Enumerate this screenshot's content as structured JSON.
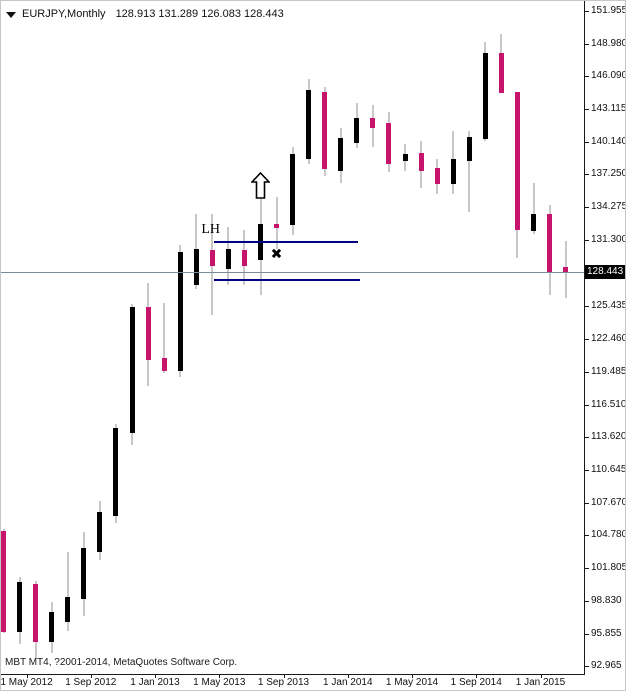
{
  "window": {
    "title_symbol": "EURJPY,Monthly",
    "title_quotes": "128.913 131.289 126.083 128.443",
    "copyright": "MBT MT4, ?2001-2014, MetaQuotes Software Corp."
  },
  "axes": {
    "price_ticks": [
      "151.955",
      "148.980",
      "146.090",
      "143.115",
      "140.140",
      "137.250",
      "134.275",
      "131.300",
      "125.435",
      "122.460",
      "119.485",
      "116.510",
      "113.620",
      "110.645",
      "107.670",
      "104.780",
      "101.805",
      "98.830",
      "95.855",
      "92.965"
    ],
    "time_ticks": [
      {
        "label": "1 May 2012",
        "candle_index": 1
      },
      {
        "label": "1 Sep 2012",
        "candle_index": 5
      },
      {
        "label": "1 Jan 2013",
        "candle_index": 9
      },
      {
        "label": "1 May 2013",
        "candle_index": 13
      },
      {
        "label": "1 Sep 2013",
        "candle_index": 17
      },
      {
        "label": "1 Jan 2014",
        "candle_index": 21
      },
      {
        "label": "1 May 2014",
        "candle_index": 25
      },
      {
        "label": "1 Sep 2014",
        "candle_index": 29
      },
      {
        "label": "1 Jan 2015",
        "candle_index": 33
      }
    ]
  },
  "current_price": {
    "value": "128.443",
    "price": 128.443
  },
  "annotations": {
    "lh_label": {
      "text": "LH",
      "candle_index": 12.9,
      "price": 132.2
    },
    "arrow_up": {
      "candle_index": 16,
      "tip_price": 137.5,
      "width": 19,
      "height": 27
    },
    "x_mark": {
      "glyph": "✖",
      "candle_index": 17,
      "price": 130.05
    },
    "trendlines": [
      {
        "name": "upper-resistance-line",
        "price": 131.2,
        "from_candle": 13.1,
        "to_candle": 22.1
      },
      {
        "name": "lower-support-line",
        "price": 127.7,
        "from_candle": 13.1,
        "to_candle": 22.2
      }
    ]
  },
  "colors": {
    "bull_body": "#000000",
    "bear_body": "#C7156D",
    "wick": "#C8C8C8",
    "trendline": "#000080",
    "current_price_line": "#7D8B99",
    "axis_text": "#111111"
  },
  "chart_data": {
    "type": "candlestick",
    "symbol": "EURJPY",
    "timeframe": "Monthly",
    "title": "EURJPY,Monthly  128.913 131.289 126.083 128.443",
    "ylim": [
      92.965,
      151.955
    ],
    "grid": false,
    "last_bar_ohlc": {
      "open": 128.913,
      "high": 131.289,
      "low": 126.083,
      "close": 128.443
    },
    "candles": [
      {
        "t": "Apr 2012",
        "o": 105.1,
        "h": 105.35,
        "l": 95.9,
        "c": 96.05
      },
      {
        "t": "May 2012",
        "o": 96.05,
        "h": 100.95,
        "l": 94.95,
        "c": 100.5
      },
      {
        "t": "Jun 2012",
        "o": 100.4,
        "h": 100.6,
        "l": 93.6,
        "c": 95.15
      },
      {
        "t": "Jul 2012",
        "o": 95.15,
        "h": 98.7,
        "l": 94.1,
        "c": 97.8
      },
      {
        "t": "Aug 2012",
        "o": 96.95,
        "h": 103.2,
        "l": 96.1,
        "c": 99.15
      },
      {
        "t": "Sep 2012",
        "o": 98.95,
        "h": 105.0,
        "l": 97.5,
        "c": 103.6
      },
      {
        "t": "Oct 2012",
        "o": 103.2,
        "h": 107.85,
        "l": 102.5,
        "c": 106.85
      },
      {
        "t": "Nov 2012",
        "o": 106.5,
        "h": 114.75,
        "l": 105.8,
        "c": 114.4
      },
      {
        "t": "Dec 2012",
        "o": 113.95,
        "h": 125.55,
        "l": 112.9,
        "c": 125.3
      },
      {
        "t": "Jan 2013",
        "o": 125.3,
        "h": 127.45,
        "l": 118.2,
        "c": 120.55
      },
      {
        "t": "Feb 2013",
        "o": 120.75,
        "h": 125.7,
        "l": 119.4,
        "c": 119.55
      },
      {
        "t": "Mar 2013",
        "o": 119.55,
        "h": 130.9,
        "l": 119.0,
        "c": 130.3
      },
      {
        "t": "Apr 2013",
        "o": 127.3,
        "h": 133.65,
        "l": 126.9,
        "c": 130.55
      },
      {
        "t": "May 2013",
        "o": 130.45,
        "h": 133.65,
        "l": 124.55,
        "c": 128.95
      },
      {
        "t": "Jun 2013",
        "o": 128.75,
        "h": 132.55,
        "l": 127.3,
        "c": 130.55
      },
      {
        "t": "Jul 2013",
        "o": 130.45,
        "h": 132.25,
        "l": 127.3,
        "c": 128.95
      },
      {
        "t": "Aug 2013",
        "o": 129.55,
        "h": 135.0,
        "l": 126.4,
        "c": 132.8
      },
      {
        "t": "Sep 2013",
        "o": 132.8,
        "h": 135.25,
        "l": 130.55,
        "c": 132.45
      },
      {
        "t": "Oct 2013",
        "o": 132.7,
        "h": 139.7,
        "l": 131.8,
        "c": 139.05
      },
      {
        "t": "Nov 2013",
        "o": 138.6,
        "h": 145.8,
        "l": 138.2,
        "c": 144.8
      },
      {
        "t": "Dec 2013",
        "o": 144.65,
        "h": 145.15,
        "l": 137.05,
        "c": 137.7
      },
      {
        "t": "Jan 2014",
        "o": 137.55,
        "h": 141.45,
        "l": 136.45,
        "c": 140.5
      },
      {
        "t": "Feb 2014",
        "o": 140.1,
        "h": 143.65,
        "l": 139.6,
        "c": 142.3
      },
      {
        "t": "Mar 2014",
        "o": 142.3,
        "h": 143.5,
        "l": 139.7,
        "c": 141.45
      },
      {
        "t": "Apr 2014",
        "o": 141.9,
        "h": 142.9,
        "l": 137.45,
        "c": 138.15
      },
      {
        "t": "May 2014",
        "o": 138.45,
        "h": 140.0,
        "l": 137.55,
        "c": 139.05
      },
      {
        "t": "Jun 2014",
        "o": 139.2,
        "h": 140.25,
        "l": 136.05,
        "c": 137.55
      },
      {
        "t": "Jul 2014",
        "o": 137.8,
        "h": 138.6,
        "l": 135.45,
        "c": 136.35
      },
      {
        "t": "Aug 2014",
        "o": 136.35,
        "h": 141.15,
        "l": 135.45,
        "c": 138.6
      },
      {
        "t": "Sep 2014",
        "o": 138.45,
        "h": 141.15,
        "l": 133.9,
        "c": 140.6
      },
      {
        "t": "Oct 2014",
        "o": 140.45,
        "h": 149.15,
        "l": 140.2,
        "c": 148.15
      },
      {
        "t": "Nov 2014",
        "o": 148.15,
        "h": 149.85,
        "l": 144.55,
        "c": 144.6
      },
      {
        "t": "Dec 2014",
        "o": 144.7,
        "h": 144.7,
        "l": 129.7,
        "c": 132.25
      },
      {
        "t": "Jan 2015",
        "o": 132.1,
        "h": 136.45,
        "l": 131.85,
        "c": 133.65
      },
      {
        "t": "Feb 2015",
        "o": 133.65,
        "h": 134.5,
        "l": 126.4,
        "c": 128.45
      },
      {
        "t": "Mar 2015",
        "o": 128.913,
        "h": 131.289,
        "l": 126.083,
        "c": 128.443
      }
    ]
  }
}
